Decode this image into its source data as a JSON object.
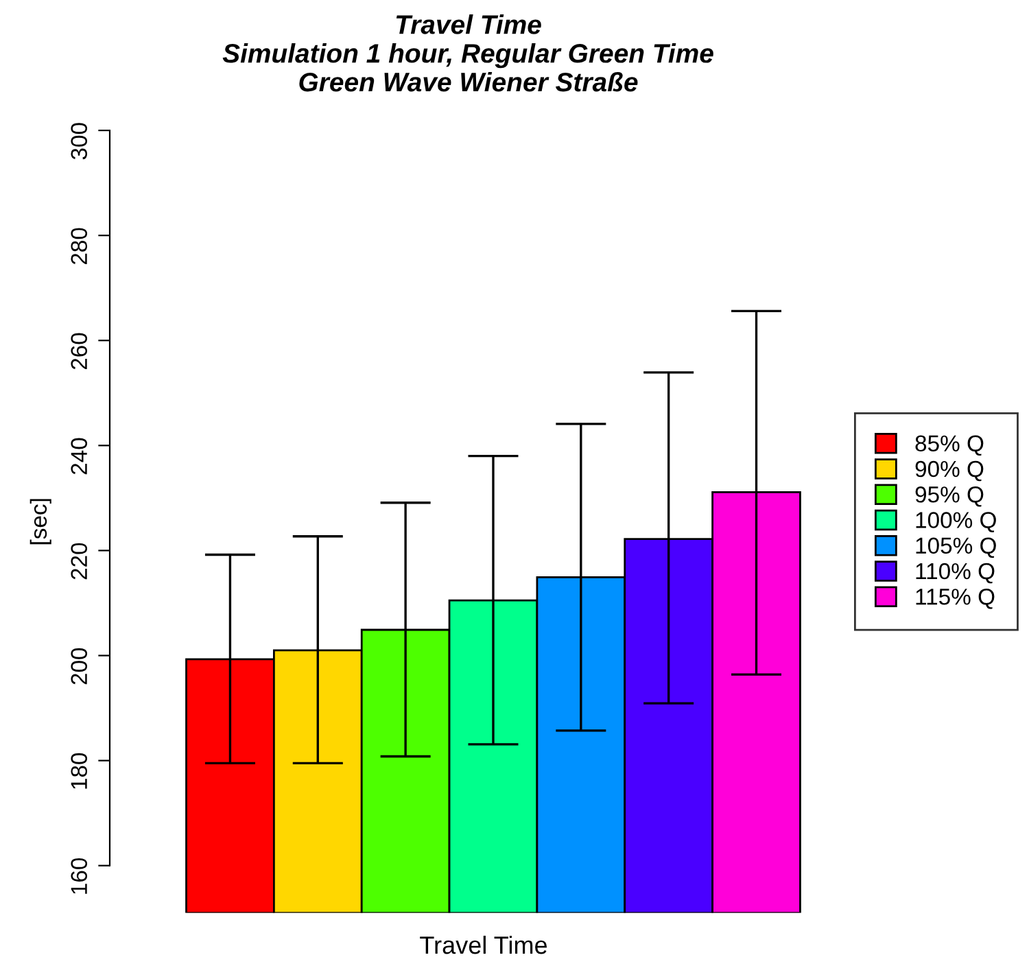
{
  "chart_data": {
    "type": "bar",
    "title": "Travel Time",
    "subtitle": "Simulation 1 hour, Regular Green Time\nGreen Wave Wiener Straße",
    "ylabel": "[sec]",
    "xlabel": "Travel Time",
    "categories": [
      null
    ],
    "series": [
      {
        "name": "85% Q",
        "color": "#ff0000",
        "values": [
          199.3
        ],
        "errors": [
          [
            179.5,
            219.2
          ]
        ]
      },
      {
        "name": "90% Q",
        "color": "#ffd700",
        "values": [
          201.0
        ],
        "errors": [
          [
            179.5,
            222.7
          ]
        ]
      },
      {
        "name": "95% Q",
        "color": "#4dff00",
        "values": [
          204.9
        ],
        "errors": [
          [
            180.8,
            229.1
          ]
        ]
      },
      {
        "name": "100% Q",
        "color": "#00ff8c",
        "values": [
          210.5
        ],
        "errors": [
          [
            183.1,
            238.0
          ]
        ]
      },
      {
        "name": "105% Q",
        "color": "#0091ff",
        "values": [
          214.9
        ],
        "errors": [
          [
            185.7,
            244.1
          ]
        ]
      },
      {
        "name": "110% Q",
        "color": "#4a00ff",
        "values": [
          222.2
        ],
        "errors": [
          [
            190.9,
            253.9
          ]
        ]
      },
      {
        "name": "115% Q",
        "color": "#ff00d9",
        "values": [
          231.1
        ],
        "errors": [
          [
            196.4,
            265.6
          ]
        ]
      }
    ],
    "ylim": [
      151,
      300
    ],
    "yticks": [
      160,
      180,
      200,
      220,
      240,
      260,
      280,
      300
    ],
    "grid": false,
    "legend": "right"
  }
}
